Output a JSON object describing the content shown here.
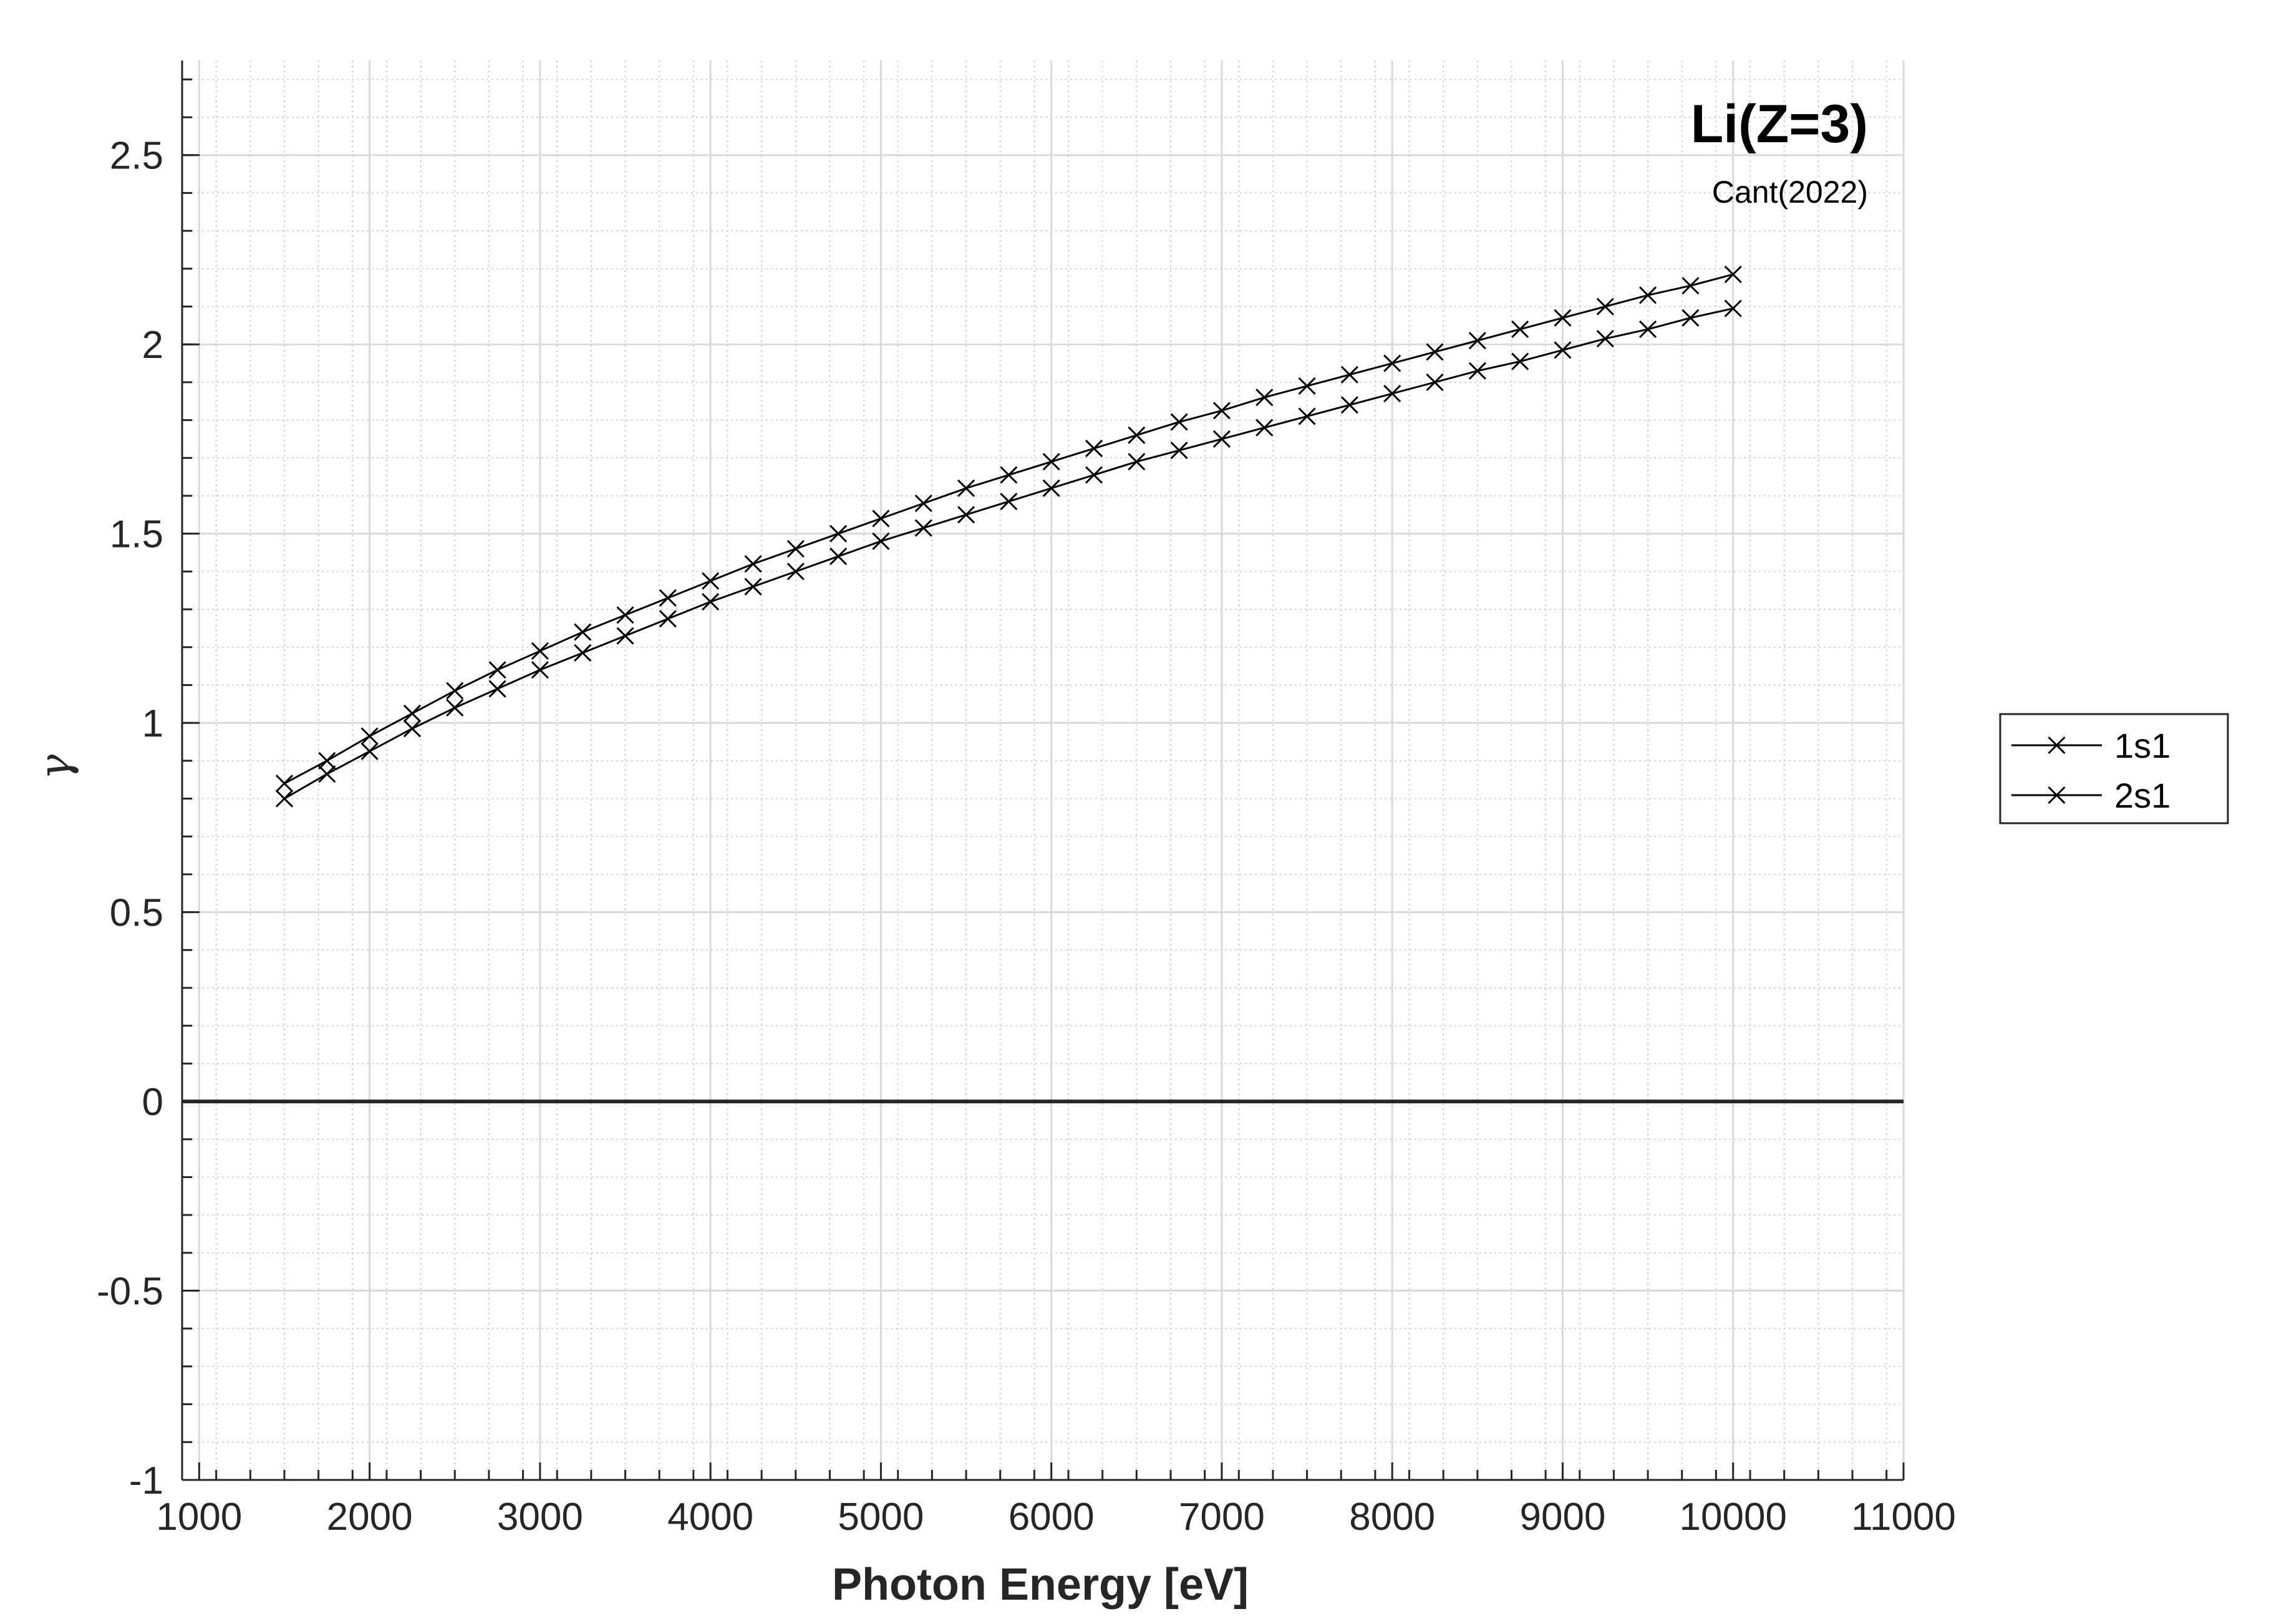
{
  "chart_data": {
    "type": "line",
    "title": "Li(Z=3)",
    "subtitle": "Cant(2022)",
    "xlabel": "Photon Energy [eV]",
    "ylabel": "γ",
    "xlim": [
      900,
      11000
    ],
    "ylim": [
      -1,
      2.75
    ],
    "x_ticks": [
      1000,
      2000,
      3000,
      4000,
      5000,
      6000,
      7000,
      8000,
      9000,
      10000,
      11000
    ],
    "y_ticks": [
      -1,
      -0.5,
      0,
      0.5,
      1,
      1.5,
      2,
      2.5
    ],
    "x_tick_labels": [
      "1000",
      "2000",
      "3000",
      "4000",
      "5000",
      "6000",
      "7000",
      "8000",
      "9000",
      "10000",
      "11000"
    ],
    "y_tick_labels": [
      "-1",
      "-0.5",
      "0",
      "0.5",
      "1",
      "1.5",
      "2",
      "2.5"
    ],
    "grid": true,
    "minor_grid": true,
    "zero_line": true,
    "legend_position": "outside-right",
    "marker": "x",
    "line_color": "#000000",
    "x": [
      1500,
      1750,
      2000,
      2250,
      2500,
      2750,
      3000,
      3250,
      3500,
      3750,
      4000,
      4250,
      4500,
      4750,
      5000,
      5250,
      5500,
      5750,
      6000,
      6250,
      6500,
      6750,
      7000,
      7250,
      7500,
      7750,
      8000,
      8250,
      8500,
      8750,
      9000,
      9250,
      9500,
      9750,
      10000
    ],
    "series": [
      {
        "name": "1s1",
        "values": [
          0.84,
          0.9,
          0.965,
          1.025,
          1.085,
          1.14,
          1.19,
          1.24,
          1.285,
          1.33,
          1.375,
          1.42,
          1.46,
          1.5,
          1.54,
          1.58,
          1.62,
          1.655,
          1.69,
          1.725,
          1.76,
          1.795,
          1.825,
          1.86,
          1.89,
          1.92,
          1.95,
          1.98,
          2.01,
          2.04,
          2.07,
          2.1,
          2.13,
          2.155,
          2.185
        ]
      },
      {
        "name": "2s1",
        "values": [
          0.8,
          0.865,
          0.925,
          0.985,
          1.04,
          1.09,
          1.14,
          1.185,
          1.23,
          1.275,
          1.32,
          1.36,
          1.4,
          1.44,
          1.48,
          1.515,
          1.55,
          1.585,
          1.62,
          1.655,
          1.69,
          1.72,
          1.75,
          1.78,
          1.81,
          1.84,
          1.87,
          1.9,
          1.93,
          1.955,
          1.985,
          2.015,
          2.04,
          2.07,
          2.095
        ]
      }
    ]
  }
}
